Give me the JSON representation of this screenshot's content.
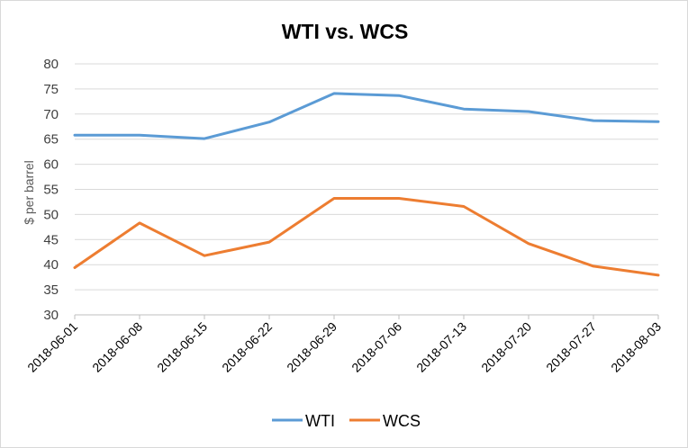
{
  "chart_data": {
    "type": "line",
    "title": "WTI vs. WCS",
    "xlabel": "",
    "ylabel": "$ per barrel",
    "ylim": [
      30,
      80
    ],
    "ytick_step": 5,
    "grid": true,
    "legend_position": "bottom",
    "categories": [
      "2018-06-01",
      "2018-06-08",
      "2018-06-15",
      "2018-06-22",
      "2018-06-29",
      "2018-07-06",
      "2018-07-13",
      "2018-07-20",
      "2018-07-27",
      "2018-08-03"
    ],
    "series": [
      {
        "name": "WTI",
        "color": "#5b9bd5",
        "values": [
          65.8,
          65.8,
          65.1,
          68.4,
          74.1,
          73.7,
          71.0,
          70.5,
          68.7,
          68.5
        ]
      },
      {
        "name": "WCS",
        "color": "#ed7d31",
        "values": [
          39.4,
          48.3,
          41.8,
          44.5,
          53.2,
          53.2,
          51.6,
          44.2,
          39.7,
          37.9
        ]
      }
    ]
  }
}
